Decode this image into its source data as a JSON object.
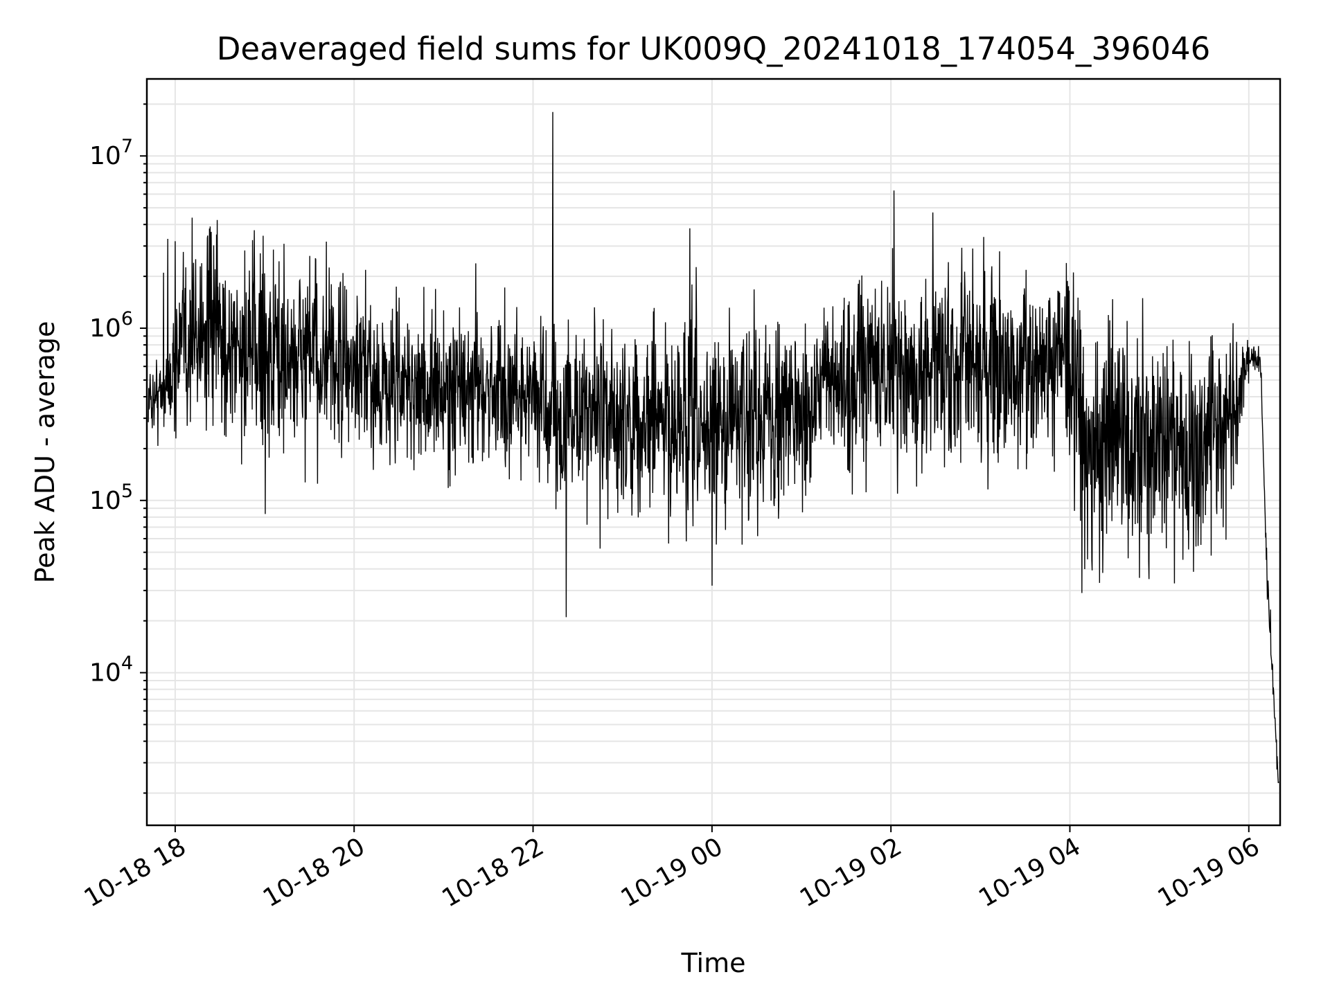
{
  "chart_data": {
    "type": "line",
    "title": "Deaveraged field sums for UK009Q_20241018_174054_396046",
    "xlabel": "Time",
    "ylabel": "Peak ADU - average",
    "yscale": "log",
    "xlim": [
      "2024-10-18 17:41",
      "2024-10-19 06:21"
    ],
    "ylim": [
      1300,
      28000000
    ],
    "grid": true,
    "grid_minor": true,
    "line_color": "#000000",
    "background": "#ffffff",
    "grid_color": "#e5e5e5",
    "x_ticks": [
      {
        "value": "2024-10-18 18:00",
        "label": "10-18 18"
      },
      {
        "value": "2024-10-18 20:00",
        "label": "10-18 20"
      },
      {
        "value": "2024-10-18 22:00",
        "label": "10-18 22"
      },
      {
        "value": "2024-10-19 00:00",
        "label": "10-19 00"
      },
      {
        "value": "2024-10-19 02:00",
        "label": "10-19 02"
      },
      {
        "value": "2024-10-19 04:00",
        "label": "10-19 04"
      },
      {
        "value": "2024-10-19 06:00",
        "label": "10-19 06"
      }
    ],
    "y_ticks": [
      {
        "value": 10000,
        "base": "10",
        "exp": "4"
      },
      {
        "value": 100000,
        "base": "10",
        "exp": "5"
      },
      {
        "value": 1000000,
        "base": "10",
        "exp": "6"
      },
      {
        "value": 10000000,
        "base": "10",
        "exp": "7"
      }
    ],
    "series": [
      {
        "x": [
          "2024-10-18 17:42",
          "2024-10-18 17:50",
          "2024-10-18 17:58",
          "2024-10-18 18:05",
          "2024-10-18 18:15",
          "2024-10-18 18:30",
          "2024-10-18 18:45",
          "2024-10-18 19:00",
          "2024-10-18 19:15",
          "2024-10-18 19:30",
          "2024-10-18 19:45",
          "2024-10-18 20:00",
          "2024-10-18 20:15",
          "2024-10-18 20:30",
          "2024-10-18 20:45",
          "2024-10-18 21:00",
          "2024-10-18 21:15",
          "2024-10-18 21:30",
          "2024-10-18 21:45",
          "2024-10-18 22:00",
          "2024-10-18 22:15",
          "2024-10-18 22:30",
          "2024-10-18 22:45",
          "2024-10-18 23:00",
          "2024-10-18 23:15",
          "2024-10-18 23:30",
          "2024-10-18 23:45",
          "2024-10-19 00:00",
          "2024-10-19 00:15",
          "2024-10-19 00:30",
          "2024-10-19 00:45",
          "2024-10-19 01:00",
          "2024-10-19 01:15",
          "2024-10-19 01:30",
          "2024-10-19 01:45",
          "2024-10-19 02:00",
          "2024-10-19 02:15",
          "2024-10-19 02:30",
          "2024-10-19 02:45",
          "2024-10-19 03:00",
          "2024-10-19 03:15",
          "2024-10-19 03:30",
          "2024-10-19 03:45",
          "2024-10-19 04:00",
          "2024-10-19 04:15",
          "2024-10-19 04:30",
          "2024-10-19 04:45",
          "2024-10-19 05:00",
          "2024-10-19 05:15",
          "2024-10-19 05:30",
          "2024-10-19 05:45",
          "2024-10-19 05:58",
          "2024-10-19 06:02",
          "2024-10-19 06:08",
          "2024-10-19 06:12",
          "2024-10-19 06:16",
          "2024-10-19 06:20"
        ],
        "center": [
          380000,
          420000,
          520000,
          800000,
          1000000,
          850000,
          700000,
          750000,
          650000,
          700000,
          600000,
          550000,
          500000,
          480000,
          450000,
          420000,
          440000,
          460000,
          430000,
          420000,
          300000,
          320000,
          300000,
          290000,
          300000,
          280000,
          250000,
          270000,
          300000,
          320000,
          330000,
          350000,
          450000,
          500000,
          550000,
          600000,
          550000,
          600000,
          600000,
          550000,
          560000,
          620000,
          650000,
          600000,
          200000,
          250000,
          220000,
          200000,
          180000,
          230000,
          260000,
          600000,
          700000,
          600000,
          40000,
          9000,
          2200
        ],
        "amplitude": [
          0.35,
          0.45,
          0.55,
          1.0,
          1.2,
          1.2,
          1.2,
          1.2,
          1.1,
          1.1,
          1.0,
          0.9,
          0.9,
          0.9,
          0.9,
          0.9,
          0.9,
          0.9,
          0.9,
          0.9,
          1.0,
          1.0,
          1.0,
          1.0,
          1.0,
          1.1,
          1.2,
          1.2,
          1.2,
          1.1,
          1.0,
          1.0,
          1.0,
          1.0,
          1.0,
          1.1,
          1.2,
          1.2,
          1.1,
          1.1,
          1.1,
          1.1,
          1.0,
          1.1,
          1.3,
          1.3,
          1.3,
          1.3,
          1.3,
          1.3,
          1.2,
          0.3,
          0.2,
          0.3,
          0.5,
          0.4,
          0.2
        ],
        "spikes": [
          {
            "x": "2024-10-18 17:52",
            "y": 2100000
          },
          {
            "x": "2024-10-18 17:55",
            "y": 3300000
          },
          {
            "x": "2024-10-18 18:00",
            "y": 3200000
          },
          {
            "x": "2024-10-18 22:13",
            "y": 18000000
          },
          {
            "x": "2024-10-18 22:22",
            "y": 21000
          },
          {
            "x": "2024-10-18 23:45",
            "y": 3800000
          },
          {
            "x": "2024-10-19 00:00",
            "y": 32000
          },
          {
            "x": "2024-10-19 02:02",
            "y": 6300000
          },
          {
            "x": "2024-10-19 02:28",
            "y": 4700000
          },
          {
            "x": "2024-10-19 04:08",
            "y": 29000
          },
          {
            "x": "2024-10-19 05:10",
            "y": 33000
          }
        ]
      }
    ]
  }
}
